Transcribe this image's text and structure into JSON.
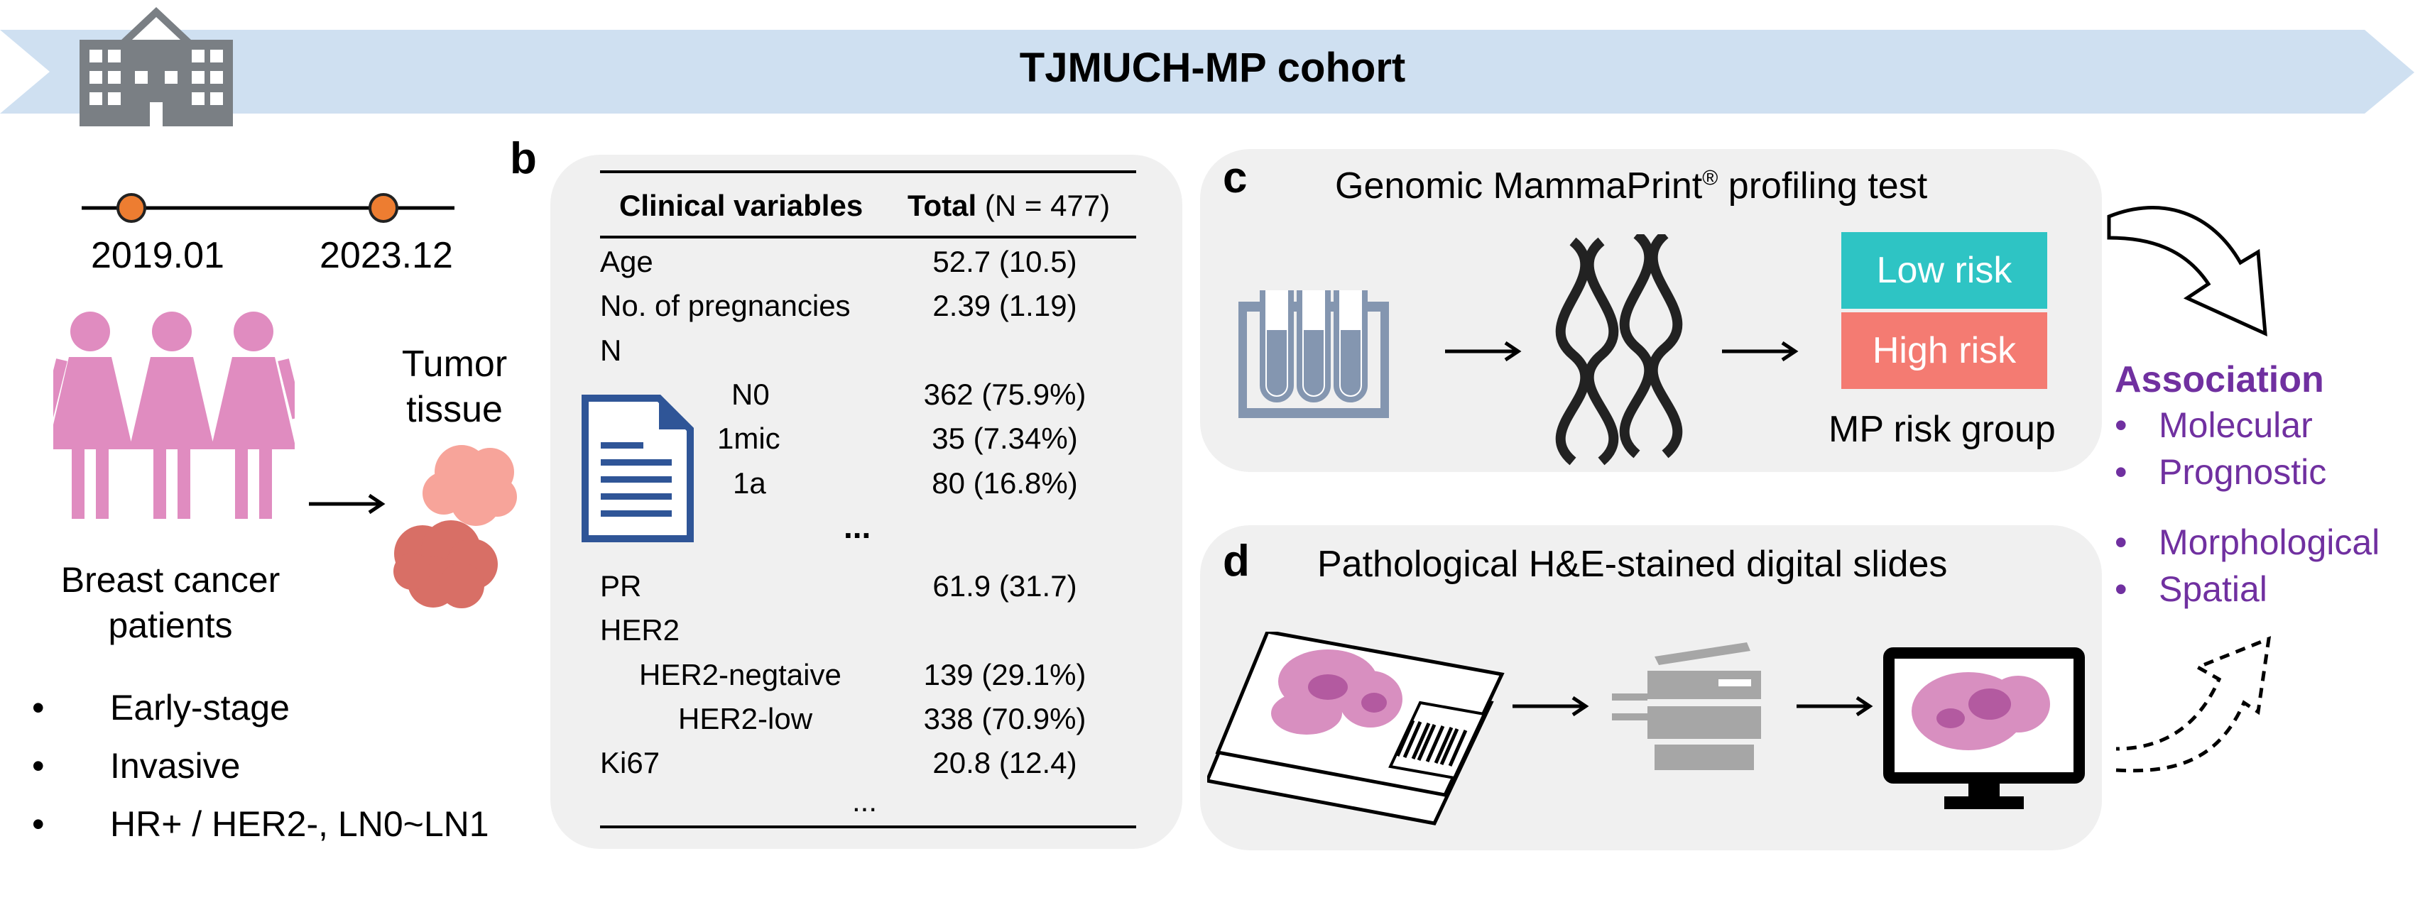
{
  "banner": {
    "title": "TJMUCH-MP cohort",
    "color": "#cfe0f1",
    "icon": "hospital-icon"
  },
  "timeline": {
    "start": "2019.01",
    "end": "2023.12",
    "marker_color": "#ed7d31"
  },
  "patients": {
    "label_line1": "Breast cancer",
    "label_line2": "patients",
    "icon": "women-group-icon",
    "color": "#e08cc0",
    "criteria": [
      "Early-stage",
      "Invasive",
      "HR+ / HER2-, LN0~LN1"
    ]
  },
  "tumor": {
    "label_line1": "Tumor",
    "label_line2": "tissue",
    "icon": "tumor-tissue-icon",
    "color": "#f08a80"
  },
  "panel_b": {
    "letter": "b",
    "header_var": "Clinical variables",
    "header_total_bold": "Total",
    "header_total_rest": " (N = 477)",
    "document_icon": "document-icon",
    "rows": [
      {
        "label": "Age",
        "value": "52.7 (10.5)"
      },
      {
        "label": "No. of pregnancies",
        "value": "2.39 (1.19)"
      },
      {
        "label": "N",
        "value": ""
      },
      {
        "label": "N0",
        "value": "362 (75.9%)"
      },
      {
        "label": "1mic",
        "value": "35 (7.34%)"
      },
      {
        "label": "1a",
        "value": "80 (16.8%)"
      },
      {
        "label": "...",
        "value": ""
      },
      {
        "label": "PR",
        "value": "61.9 (31.7)"
      },
      {
        "label": "HER2",
        "value": ""
      },
      {
        "label": "HER2-negtaive",
        "value": "139 (29.1%)"
      },
      {
        "label": "HER2-low",
        "value": "338 (70.9%)"
      },
      {
        "label": "Ki67",
        "value": "20.8 (12.4)"
      },
      {
        "label": "...",
        "value": ""
      }
    ]
  },
  "panel_c": {
    "letter": "c",
    "title": "Genomic MammaPrint",
    "title_sup": "®",
    "title_rest": " profiling test",
    "tubes_icon": "test-tubes-icon",
    "dna_icon": "dna-helix-icon",
    "low_risk": "Low risk",
    "high_risk": "High risk",
    "low_color": "#2ec4c4",
    "high_color": "#f47b72",
    "group_label": "MP risk group"
  },
  "panel_d": {
    "letter": "d",
    "title": "Pathological H&E-stained digital slides",
    "slide_icon": "glass-slide-icon",
    "scanner_icon": "slide-scanner-icon",
    "monitor_icon": "monitor-icon"
  },
  "association": {
    "title": "Association",
    "color": "#7030a0",
    "items": [
      "Molecular",
      "Prognostic",
      "Morphological",
      "Spatial"
    ]
  }
}
